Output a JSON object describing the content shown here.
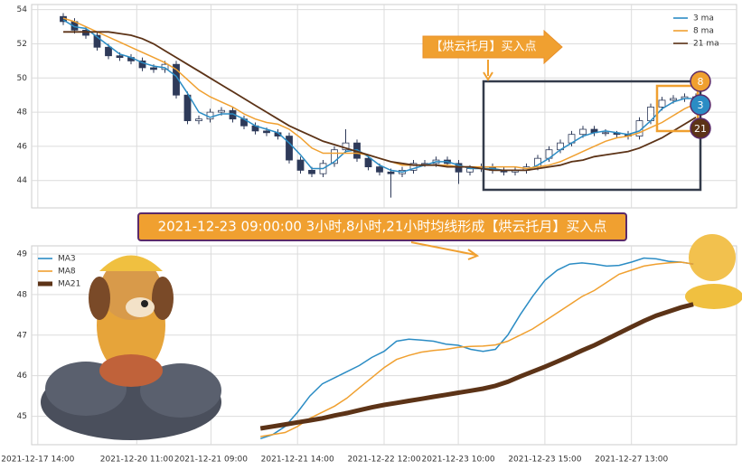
{
  "chart_data": [
    {
      "type": "candlestick",
      "open": [
        53.6,
        53.3,
        52.8,
        52.5,
        51.8,
        51.3,
        51.2,
        51.0,
        50.6,
        50.5,
        50.8,
        49.0,
        47.5,
        47.6,
        48.0,
        48.1,
        47.6,
        47.2,
        46.9,
        46.8,
        46.6,
        45.2,
        44.6,
        44.4,
        45.0,
        45.8,
        46.2,
        45.3,
        44.8,
        44.5,
        44.4,
        44.6,
        45.0,
        45.0,
        45.2,
        45.0,
        44.5,
        44.7,
        44.8,
        44.6,
        44.5,
        44.6,
        44.8,
        45.3,
        45.8,
        46.2,
        46.7,
        47.0,
        46.8,
        46.8,
        46.7,
        46.6,
        47.5,
        48.3,
        48.7,
        48.8,
        48.9
      ],
      "high": [
        53.8,
        53.5,
        53.0,
        52.7,
        52.0,
        51.5,
        51.4,
        51.2,
        50.8,
        51.0,
        51.0,
        49.2,
        47.8,
        48.2,
        48.3,
        48.3,
        47.8,
        47.4,
        47.1,
        47.0,
        46.8,
        45.4,
        44.8,
        45.2,
        46.0,
        47.0,
        46.4,
        45.5,
        45.0,
        44.7,
        44.8,
        45.2,
        45.2,
        45.4,
        45.4,
        45.2,
        44.9,
        45.0,
        45.0,
        44.8,
        44.8,
        45.0,
        45.5,
        46.0,
        46.4,
        46.9,
        47.2,
        47.2,
        47.0,
        46.9,
        46.9,
        47.7,
        48.5,
        48.9,
        49.0,
        49.1,
        49.1
      ],
      "low": [
        53.1,
        52.6,
        52.3,
        51.6,
        51.1,
        51.0,
        50.8,
        50.4,
        50.3,
        50.3,
        48.8,
        47.3,
        47.3,
        47.4,
        47.8,
        47.4,
        47.0,
        46.7,
        46.6,
        46.4,
        45.0,
        44.4,
        44.2,
        44.2,
        44.8,
        45.6,
        45.1,
        44.6,
        44.3,
        43.0,
        44.2,
        44.4,
        44.8,
        44.8,
        44.8,
        43.8,
        44.3,
        44.5,
        44.4,
        44.3,
        44.3,
        44.4,
        44.6,
        45.1,
        45.6,
        46.0,
        46.5,
        46.6,
        46.6,
        46.5,
        46.4,
        46.4,
        47.3,
        48.1,
        48.5,
        48.6,
        48.6
      ],
      "close": [
        53.3,
        52.8,
        52.5,
        51.8,
        51.3,
        51.2,
        51.0,
        50.6,
        50.5,
        50.8,
        49.0,
        47.5,
        47.6,
        48.0,
        48.1,
        47.6,
        47.2,
        46.9,
        46.8,
        46.6,
        45.2,
        44.6,
        44.4,
        45.0,
        45.8,
        46.2,
        45.3,
        44.8,
        44.5,
        44.4,
        44.6,
        45.0,
        45.0,
        45.2,
        45.0,
        44.5,
        44.7,
        44.8,
        44.6,
        44.5,
        44.6,
        44.8,
        45.3,
        45.8,
        46.2,
        46.7,
        47.0,
        46.8,
        46.8,
        46.7,
        46.6,
        47.5,
        48.3,
        48.7,
        48.8,
        48.9,
        48.8
      ],
      "up_color": "#ffffff",
      "down_color": "#2e3a59",
      "series": [
        {
          "name": "3 ma",
          "color": "#2b8cc4",
          "values": [
            53.4,
            53.0,
            52.9,
            52.4,
            51.9,
            51.4,
            51.2,
            50.9,
            50.7,
            50.6,
            50.1,
            49.1,
            48.0,
            47.7,
            47.9,
            47.9,
            47.6,
            47.2,
            47.0,
            46.8,
            46.2,
            45.5,
            44.7,
            44.7,
            45.1,
            45.7,
            45.8,
            45.4,
            44.9,
            44.6,
            44.5,
            44.7,
            44.9,
            45.1,
            45.1,
            44.9,
            44.7,
            44.7,
            44.7,
            44.6,
            44.6,
            44.6,
            44.9,
            45.3,
            45.8,
            46.2,
            46.6,
            46.8,
            46.9,
            46.8,
            46.7,
            46.9,
            47.5,
            48.2,
            48.6,
            48.8,
            48.8
          ]
        },
        {
          "name": "8 ma",
          "color": "#f0a030",
          "values": [
            53.5,
            53.3,
            53.0,
            52.7,
            52.4,
            52.1,
            51.8,
            51.5,
            51.2,
            50.9,
            50.5,
            49.9,
            49.3,
            48.9,
            48.6,
            48.3,
            47.9,
            47.6,
            47.4,
            47.3,
            47.0,
            46.5,
            45.9,
            45.6,
            45.6,
            45.6,
            45.6,
            45.5,
            45.3,
            45.1,
            44.9,
            44.9,
            44.9,
            44.9,
            44.9,
            44.8,
            44.8,
            44.8,
            44.8,
            44.8,
            44.8,
            44.7,
            44.8,
            44.9,
            45.1,
            45.4,
            45.7,
            46.0,
            46.3,
            46.5,
            46.6,
            46.8,
            47.1,
            47.4,
            47.8,
            48.2,
            48.5
          ]
        },
        {
          "name": "21 ma",
          "color": "#5c3317",
          "values": [
            52.7,
            52.7,
            52.7,
            52.7,
            52.7,
            52.6,
            52.5,
            52.3,
            52.0,
            51.6,
            51.2,
            50.8,
            50.4,
            50.0,
            49.6,
            49.2,
            48.8,
            48.4,
            48.0,
            47.6,
            47.2,
            46.9,
            46.6,
            46.3,
            46.1,
            45.9,
            45.7,
            45.5,
            45.3,
            45.1,
            45.0,
            44.9,
            44.9,
            44.9,
            44.8,
            44.8,
            44.8,
            44.7,
            44.6,
            44.6,
            44.6,
            44.6,
            44.7,
            44.8,
            44.9,
            45.1,
            45.2,
            45.4,
            45.5,
            45.6,
            45.7,
            45.9,
            46.2,
            46.5,
            46.9,
            47.3,
            47.7
          ]
        }
      ],
      "ylim": [
        42.4,
        54.3
      ],
      "yticks": [
        44,
        46,
        48,
        50,
        52,
        54
      ],
      "grid": true,
      "legend": "upper right",
      "annotation": "【烘云托月】买入点",
      "badges": [
        {
          "label": "8",
          "color": "#f0a030"
        },
        {
          "label": "3",
          "color": "#2b8cc4"
        },
        {
          "label": "21",
          "color": "#5c3317"
        }
      ]
    },
    {
      "type": "line",
      "title": "2021-12-23 09:00:00 3小时,8小时,21小时均线形成【烘云托月】买入点",
      "categories": [
        "2021-12-17 14:00",
        null,
        null,
        null,
        null,
        null,
        null,
        null,
        "2021-12-20 11:00",
        null,
        null,
        null,
        null,
        null,
        "2021-12-21 09:00",
        null,
        null,
        null,
        null,
        null,
        null,
        "2021-12-21 14:00",
        null,
        null,
        null,
        null,
        null,
        null,
        "2021-12-22 12:00",
        null,
        null,
        null,
        null,
        null,
        "2021-12-23 10:00",
        null,
        null,
        null,
        null,
        null,
        null,
        "2021-12-23 15:00",
        null,
        null,
        null,
        null,
        null,
        null,
        "2021-12-27 13:00",
        null,
        null,
        null,
        null,
        null,
        null,
        null,
        null
      ],
      "series": [
        {
          "name": "MA3",
          "color": "#2b8cc4",
          "values": [
            null,
            null,
            null,
            null,
            null,
            null,
            null,
            null,
            null,
            null,
            null,
            null,
            null,
            null,
            null,
            null,
            null,
            null,
            44.45,
            44.55,
            44.75,
            45.1,
            45.5,
            45.8,
            45.95,
            46.1,
            46.25,
            46.45,
            46.6,
            46.85,
            46.9,
            46.88,
            46.85,
            46.78,
            46.75,
            46.65,
            46.6,
            46.65,
            47.0,
            47.5,
            47.95,
            48.35,
            48.6,
            48.75,
            48.78,
            48.75,
            48.7,
            48.72,
            48.8,
            48.9,
            48.88,
            48.82,
            48.8,
            48.75,
            null,
            null,
            null
          ]
        },
        {
          "name": "MA8",
          "color": "#f0a030",
          "values": [
            null,
            null,
            null,
            null,
            null,
            null,
            null,
            null,
            null,
            null,
            null,
            null,
            null,
            null,
            null,
            null,
            null,
            null,
            44.5,
            44.55,
            44.6,
            44.75,
            44.95,
            45.1,
            45.25,
            45.45,
            45.7,
            45.95,
            46.2,
            46.4,
            46.5,
            46.58,
            46.62,
            46.65,
            46.7,
            46.72,
            46.73,
            46.76,
            46.85,
            47.0,
            47.15,
            47.35,
            47.55,
            47.75,
            47.95,
            48.1,
            48.3,
            48.5,
            48.6,
            48.7,
            48.75,
            48.78,
            48.8,
            48.75,
            null,
            null,
            null
          ]
        },
        {
          "name": "MA21",
          "color": "#5c3317",
          "values": [
            null,
            null,
            null,
            null,
            null,
            null,
            null,
            null,
            null,
            null,
            null,
            null,
            null,
            null,
            null,
            null,
            null,
            null,
            44.7,
            44.75,
            44.8,
            44.85,
            44.9,
            44.95,
            45.02,
            45.08,
            45.15,
            45.22,
            45.28,
            45.33,
            45.38,
            45.43,
            45.48,
            45.53,
            45.58,
            45.63,
            45.68,
            45.75,
            45.85,
            45.98,
            46.1,
            46.22,
            46.35,
            46.48,
            46.62,
            46.75,
            46.9,
            47.05,
            47.2,
            47.35,
            47.48,
            47.58,
            47.68,
            47.76,
            null,
            null,
            null
          ]
        }
      ],
      "ylim": [
        44.3,
        49.2
      ],
      "yticks": [
        45,
        46,
        47,
        48,
        49
      ],
      "grid": true,
      "legend": "upper left"
    }
  ]
}
